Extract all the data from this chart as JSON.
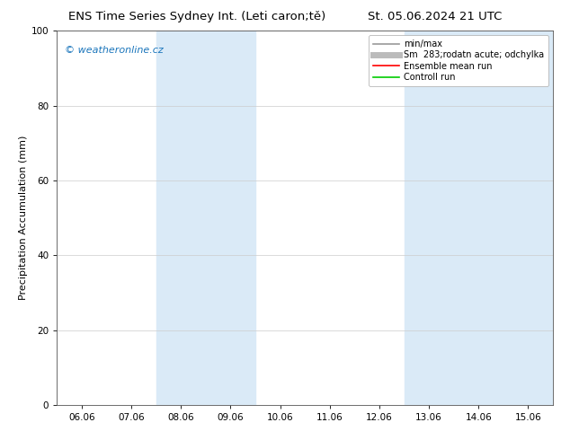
{
  "title_left": "ENS Time Series Sydney Int. (Leti caron;tě)",
  "title_right": "St. 05.06.2024 21 UTC",
  "ylabel": "Precipitation Accumulation (mm)",
  "ylim": [
    0,
    100
  ],
  "yticks": [
    0,
    20,
    40,
    60,
    80,
    100
  ],
  "xtick_labels": [
    "06.06",
    "07.06",
    "08.06",
    "09.06",
    "10.06",
    "11.06",
    "12.06",
    "13.06",
    "14.06",
    "15.06"
  ],
  "xtick_positions": [
    0,
    1,
    2,
    3,
    4,
    5,
    6,
    7,
    8,
    9
  ],
  "xlim": [
    -0.5,
    9.5
  ],
  "shade_bands": [
    {
      "x_start": 1.5,
      "x_end": 3.5
    },
    {
      "x_start": 6.5,
      "x_end": 9.5
    }
  ],
  "shade_color": "#daeaf7",
  "watermark": "© weatheronline.cz",
  "watermark_color": "#1a75bb",
  "legend_entries": [
    {
      "label": "min/max",
      "color": "#999999",
      "lw": 1.2
    },
    {
      "label": "Sm  283;rodatn acute; odchylka",
      "color": "#bbbbbb",
      "lw": 5
    },
    {
      "label": "Ensemble mean run",
      "color": "#ff0000",
      "lw": 1.2
    },
    {
      "label": "Controll run",
      "color": "#00cc00",
      "lw": 1.2
    }
  ],
  "bg_color": "#ffffff",
  "plot_bg_color": "#ffffff",
  "grid_color": "#cccccc",
  "title_fontsize": 9.5,
  "tick_fontsize": 7.5,
  "ylabel_fontsize": 8,
  "legend_fontsize": 7,
  "watermark_fontsize": 8
}
